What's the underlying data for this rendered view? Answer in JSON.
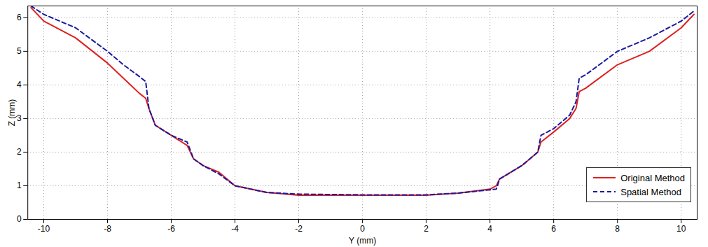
{
  "chart_data": {
    "type": "line",
    "x_label": "Y (mm)",
    "y_label": "Z (mm)",
    "x": [
      -10.4,
      -10,
      -9,
      -8,
      -7.5,
      -7,
      -6.8,
      -6.7,
      -6.5,
      -6,
      -5.5,
      -5.3,
      -5,
      -4.5,
      -4,
      -3,
      -2,
      0,
      2,
      3,
      4,
      4.2,
      4.3,
      5,
      5.5,
      5.6,
      6,
      6.5,
      6.7,
      6.8,
      7,
      8,
      9,
      10,
      10.4
    ],
    "series": [
      {
        "name": "Original Method",
        "color": "#e02020",
        "line_style": "solid",
        "values": [
          6.3,
          5.9,
          5.4,
          4.65,
          4.2,
          3.75,
          3.6,
          3.3,
          2.8,
          2.5,
          2.2,
          1.8,
          1.6,
          1.4,
          1.0,
          0.8,
          0.72,
          0.72,
          0.72,
          0.78,
          0.9,
          1.0,
          1.2,
          1.6,
          2.0,
          2.3,
          2.6,
          3.0,
          3.3,
          3.8,
          3.9,
          4.6,
          5.0,
          5.7,
          6.1
        ]
      },
      {
        "name": "Spatial Method",
        "color": "#1a1aa0",
        "line_style": "dashed",
        "values": [
          6.35,
          6.1,
          5.7,
          5.0,
          4.6,
          4.25,
          4.1,
          3.3,
          2.8,
          2.5,
          2.3,
          1.8,
          1.6,
          1.35,
          1.0,
          0.8,
          0.75,
          0.73,
          0.73,
          0.78,
          0.88,
          0.9,
          1.2,
          1.6,
          2.0,
          2.5,
          2.7,
          3.1,
          3.5,
          4.2,
          4.3,
          5.0,
          5.4,
          5.9,
          6.2
        ]
      }
    ],
    "xlim": [
      -10.5,
      10.5
    ],
    "xticks": [
      -10,
      -8,
      -6,
      -4,
      -2,
      0,
      2,
      4,
      6,
      8,
      10
    ],
    "ylim": [
      0,
      6.35
    ],
    "yticks": [
      0,
      1,
      2,
      3,
      4,
      5,
      6
    ],
    "grid": true,
    "legend": "lower right"
  }
}
